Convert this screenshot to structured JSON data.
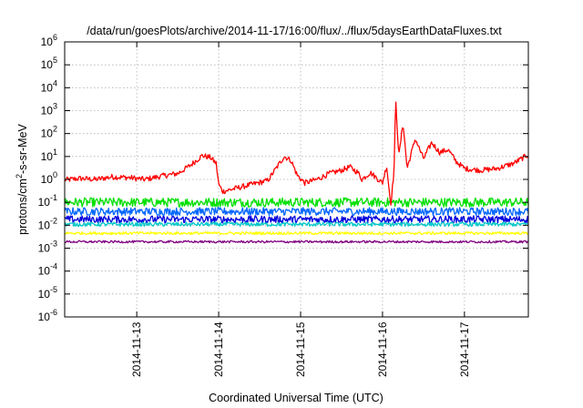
{
  "chart_data": {
    "type": "line",
    "title": "/data/run/goesPlots/archive/2014-11-17/16:00/flux/../flux/5daysEarthDataFluxes.txt",
    "xlabel": "Coordinated Universal Time (UTC)",
    "ylabel": {
      "base": "protons/cm",
      "sup": "2",
      "rest": "-s-sr-MeV"
    },
    "yscale": "log",
    "ylim_exp": [
      -6,
      6
    ],
    "xlim_days": [
      12.12,
      17.78
    ],
    "x_tick_labels": [
      {
        "day": 13,
        "label": "2014-11-13"
      },
      {
        "day": 14,
        "label": "2014-11-14"
      },
      {
        "day": 15,
        "label": "2014-11-15"
      },
      {
        "day": 16,
        "label": "2014-11-16"
      },
      {
        "day": 17,
        "label": "2014-11-17"
      }
    ],
    "y_tick_labels": [
      {
        "exp": -6,
        "base": "10",
        "sup": "-6"
      },
      {
        "exp": -5,
        "base": "10",
        "sup": "-5"
      },
      {
        "exp": -4,
        "base": "10",
        "sup": "-4"
      },
      {
        "exp": -3,
        "base": "10",
        "sup": "-3"
      },
      {
        "exp": -2,
        "base": "10",
        "sup": "-2"
      },
      {
        "exp": -1,
        "base": "10",
        "sup": "-1"
      },
      {
        "exp": 0,
        "base": "10",
        "sup": "0"
      },
      {
        "exp": 1,
        "base": "10",
        "sup": "1"
      },
      {
        "exp": 2,
        "base": "10",
        "sup": "2"
      },
      {
        "exp": 3,
        "base": "10",
        "sup": "3"
      },
      {
        "exp": 4,
        "base": "10",
        "sup": "4"
      },
      {
        "exp": 5,
        "base": "10",
        "sup": "5"
      },
      {
        "exp": 6,
        "base": "10",
        "sup": "6"
      }
    ],
    "grid": true,
    "series": [
      {
        "color": "#ff0000",
        "noise_amp_log": 0.12,
        "points": [
          [
            12.12,
            0.95
          ],
          [
            12.3,
            1.1
          ],
          [
            12.5,
            1.0
          ],
          [
            12.7,
            1.3
          ],
          [
            12.9,
            1.2
          ],
          [
            13.1,
            1.0
          ],
          [
            13.3,
            1.4
          ],
          [
            13.5,
            1.8
          ],
          [
            13.65,
            4.0
          ],
          [
            13.8,
            11.0
          ],
          [
            13.9,
            9.0
          ],
          [
            13.97,
            5.0
          ],
          [
            14.0,
            0.6
          ],
          [
            14.05,
            0.3
          ],
          [
            14.2,
            0.4
          ],
          [
            14.4,
            0.6
          ],
          [
            14.6,
            0.9
          ],
          [
            14.7,
            3.0
          ],
          [
            14.8,
            10.0
          ],
          [
            14.88,
            7.0
          ],
          [
            14.96,
            1.5
          ],
          [
            15.05,
            0.7
          ],
          [
            15.2,
            1.0
          ],
          [
            15.35,
            1.8
          ],
          [
            15.5,
            2.5
          ],
          [
            15.6,
            3.5
          ],
          [
            15.7,
            2.0
          ],
          [
            15.75,
            1.0
          ],
          [
            15.85,
            2.0
          ],
          [
            16.0,
            0.7
          ],
          [
            16.05,
            4.0
          ],
          [
            16.1,
            0.08
          ],
          [
            16.14,
            2.0
          ],
          [
            16.16,
            3000.0
          ],
          [
            16.2,
            10.0
          ],
          [
            16.25,
            300.0
          ],
          [
            16.3,
            3.0
          ],
          [
            16.4,
            60.0
          ],
          [
            16.5,
            8.0
          ],
          [
            16.6,
            40.0
          ],
          [
            16.7,
            15.0
          ],
          [
            16.8,
            20.0
          ],
          [
            16.9,
            6.0
          ],
          [
            17.0,
            3.0
          ],
          [
            17.2,
            2.5
          ],
          [
            17.4,
            3.0
          ],
          [
            17.6,
            5.0
          ],
          [
            17.78,
            12.0
          ]
        ]
      },
      {
        "color": "#00e000",
        "noise_amp_log": 0.2,
        "points": [
          [
            12.12,
            0.1
          ],
          [
            17.78,
            0.1
          ]
        ]
      },
      {
        "color": "#0066ff",
        "noise_amp_log": 0.17,
        "points": [
          [
            12.12,
            0.04
          ],
          [
            17.78,
            0.04
          ]
        ]
      },
      {
        "color": "#0000dd",
        "noise_amp_log": 0.16,
        "points": [
          [
            12.12,
            0.018
          ],
          [
            17.78,
            0.018
          ]
        ]
      },
      {
        "color": "#00c8c8",
        "noise_amp_log": 0.09,
        "points": [
          [
            12.12,
            0.011
          ],
          [
            17.78,
            0.011
          ]
        ]
      },
      {
        "color": "#ffff00",
        "noise_amp_log": 0.06,
        "points": [
          [
            12.12,
            0.0045
          ],
          [
            17.78,
            0.0045
          ]
        ]
      },
      {
        "color": "#800080",
        "noise_amp_log": 0.05,
        "points": [
          [
            12.12,
            0.0019
          ],
          [
            17.78,
            0.0019
          ]
        ]
      }
    ]
  }
}
